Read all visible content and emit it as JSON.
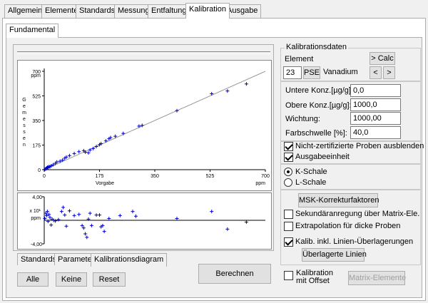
{
  "top_tabs": [
    "Allgemein",
    "Elemente",
    "Standards",
    "Messung",
    "Entfaltung",
    "Kalibration",
    "Ausgabe"
  ],
  "sub_tab": "Fundamental",
  "bottom_tabs": [
    "Standards",
    "Parameter",
    "Kalibrationsdiagram"
  ],
  "buttons": {
    "alle": "Alle",
    "keine": "Keine",
    "reset": "Reset",
    "berechnen": "Berechnen",
    "matrix": "Matrix-Elemente",
    "calc": "> Calc",
    "prev": "<",
    "next": ">",
    "pse": "PSE",
    "msk": "MSK-Korrekturfaktoren",
    "ueberlagerte": "Überlagerte Linien"
  },
  "kalibrationsdaten": {
    "title": "Kalibrationsdaten",
    "element_label": "Element",
    "element_number": "23",
    "element_name": "Vanadium"
  },
  "fields": [
    {
      "label": "Untere Konz.[µg/g]:",
      "value": "0,0"
    },
    {
      "label": "Obere Konz.[µg/g]:",
      "value": "1000,0"
    },
    {
      "label": "Wichtung:",
      "value": "1000,00"
    },
    {
      "label": "Farbschwelle [%]:",
      "value": "40,0"
    }
  ],
  "checks": {
    "nicht_zert": {
      "label": "Nicht-zertifizierte Proben ausblenden",
      "checked": true
    },
    "ausgabe": {
      "label": "Ausgabeeinheit",
      "checked": true
    },
    "sekundaer": {
      "label": "Sekundäranregung über Matrix-Ele.",
      "checked": false
    },
    "extrapolation": {
      "label": "Extrapolation für dicke Proben",
      "checked": false
    },
    "kalib_linien": {
      "label": "Kalib. inkl. Linien-Überlagerungen",
      "checked": true
    },
    "offset": {
      "label": "Kalibration\nmit Offset",
      "checked": false
    }
  },
  "radios": {
    "k_schale": {
      "label": "K-Schale",
      "checked": true
    },
    "l_schale": {
      "label": "L-Schale",
      "checked": false
    }
  },
  "chart_data": [
    {
      "type": "scatter",
      "ylabel": "Gemessen",
      "yunit": "ppm",
      "xlabel": "Vorgabe",
      "xunit": "ppm",
      "xlim": [
        0,
        700
      ],
      "ylim": [
        0,
        700
      ],
      "xticks": [
        "0",
        "175",
        "350",
        "525",
        "700"
      ],
      "yticks": [
        "0",
        "175",
        "350",
        "525",
        "700"
      ],
      "color": "#0000cc",
      "fit_line": {
        "x": [
          0,
          700
        ],
        "y": [
          0,
          700
        ]
      },
      "points": [
        [
          2,
          2
        ],
        [
          5,
          6
        ],
        [
          8,
          12
        ],
        [
          10,
          18
        ],
        [
          12,
          15
        ],
        [
          15,
          22
        ],
        [
          18,
          20
        ],
        [
          22,
          28
        ],
        [
          28,
          35
        ],
        [
          35,
          45
        ],
        [
          40,
          55
        ],
        [
          50,
          60
        ],
        [
          58,
          68
        ],
        [
          65,
          82
        ],
        [
          70,
          90
        ],
        [
          80,
          100
        ],
        [
          95,
          115
        ],
        [
          110,
          128
        ],
        [
          125,
          135
        ],
        [
          130,
          125
        ],
        [
          140,
          120
        ],
        [
          145,
          140
        ],
        [
          155,
          150
        ],
        [
          165,
          165
        ],
        [
          175,
          178
        ],
        [
          180,
          185
        ],
        [
          195,
          205
        ],
        [
          205,
          220
        ],
        [
          210,
          228
        ],
        [
          225,
          238
        ],
        [
          250,
          258
        ],
        [
          300,
          310
        ],
        [
          310,
          315
        ],
        [
          420,
          420
        ],
        [
          530,
          540
        ],
        [
          580,
          560
        ],
        [
          640,
          610
        ]
      ]
    },
    {
      "type": "scatter",
      "ylabel": "x 10¹ ppm",
      "ylim": [
        -4,
        4
      ],
      "yticks": [
        "4,00",
        "-4,00"
      ],
      "color": "#0000cc",
      "points": [
        [
          2,
          0.3
        ],
        [
          5,
          1.2
        ],
        [
          8,
          0.8
        ],
        [
          10,
          1.5
        ],
        [
          12,
          -0.2
        ],
        [
          15,
          1.0
        ],
        [
          18,
          0.5
        ],
        [
          22,
          -0.8
        ],
        [
          25,
          0.2
        ],
        [
          30,
          0.0
        ],
        [
          35,
          -0.1
        ],
        [
          45,
          0.1
        ],
        [
          55,
          1.5
        ],
        [
          60,
          2.2
        ],
        [
          65,
          0.9
        ],
        [
          70,
          -1.0
        ],
        [
          80,
          1.6
        ],
        [
          95,
          0.8
        ],
        [
          110,
          1.0
        ],
        [
          120,
          -0.9
        ],
        [
          125,
          -1.3
        ],
        [
          130,
          -2.3
        ],
        [
          135,
          -2.9
        ],
        [
          140,
          0.2
        ],
        [
          145,
          1.2
        ],
        [
          150,
          -0.9
        ],
        [
          165,
          0.9
        ],
        [
          175,
          0.9
        ],
        [
          180,
          -1.1
        ],
        [
          185,
          -0.9
        ],
        [
          190,
          -1.9
        ],
        [
          205,
          0.3
        ],
        [
          240,
          0.8
        ],
        [
          280,
          1.5
        ],
        [
          290,
          0.7
        ],
        [
          420,
          0.3
        ],
        [
          530,
          1.5
        ],
        [
          580,
          -1.5
        ],
        [
          640,
          -0.3
        ]
      ]
    }
  ]
}
